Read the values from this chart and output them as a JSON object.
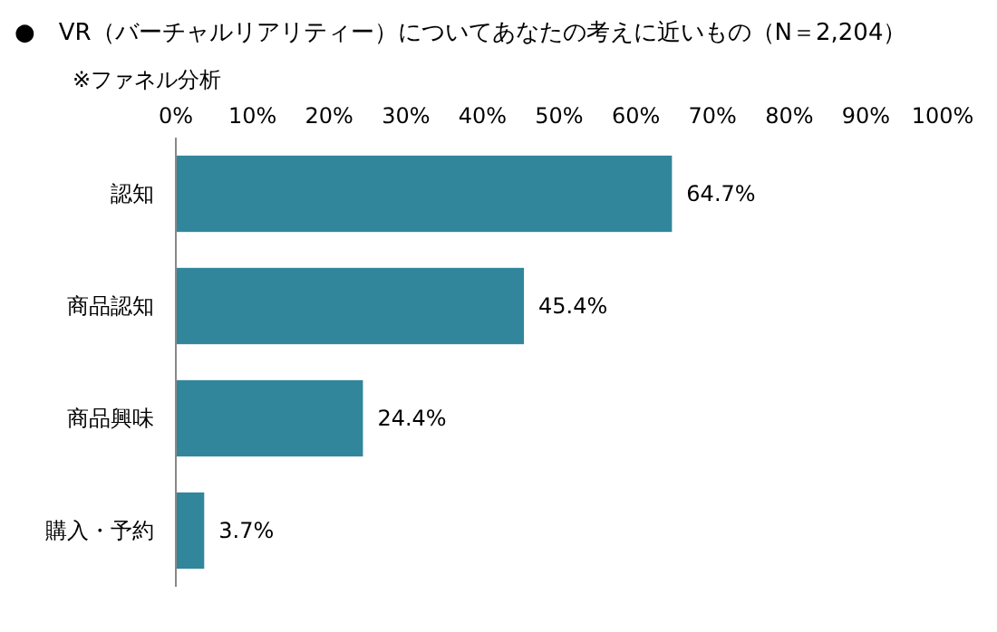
{
  "chart_data": {
    "type": "bar",
    "orientation": "horizontal",
    "title": "●　VR（バーチャルリアリティー）についてあなたの考えに近いもの（N＝2,204）",
    "subtitle": "※ファネル分析",
    "categories": [
      "認知",
      "商品認知",
      "商品興味",
      "購入・予約"
    ],
    "values": [
      64.7,
      45.4,
      24.4,
      3.7
    ],
    "value_labels": [
      "64.7%",
      "45.4%",
      "24.4%",
      "3.7%"
    ],
    "color": "#31869b",
    "xlim": [
      0,
      100
    ],
    "xticks": [
      {
        "value": 0,
        "label": "0%"
      },
      {
        "value": 10,
        "label": "10%"
      },
      {
        "value": 20,
        "label": "20%"
      },
      {
        "value": 30,
        "label": "30%"
      },
      {
        "value": 40,
        "label": "40%"
      },
      {
        "value": 50,
        "label": "50%"
      },
      {
        "value": 60,
        "label": "60%"
      },
      {
        "value": 70,
        "label": "70%"
      },
      {
        "value": 80,
        "label": "80%"
      },
      {
        "value": 90,
        "label": "90%"
      },
      {
        "value": 100,
        "label": "100%"
      }
    ]
  }
}
